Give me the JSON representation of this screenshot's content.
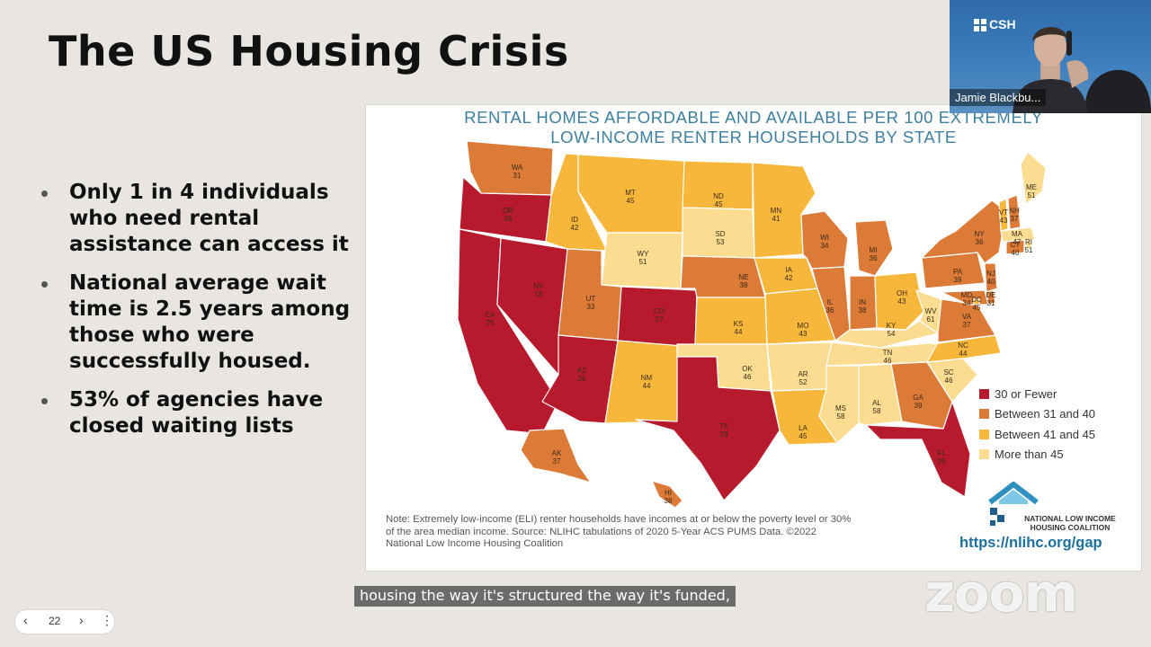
{
  "slide": {
    "title": "The US Housing Crisis",
    "bullets": [
      "Only 1 in 4 individuals who need rental assistance can access it",
      "National average wait time is 2.5 years among those who were successfully housed.",
      "53% of agencies have closed waiting lists"
    ]
  },
  "map": {
    "title_line1": "RENTAL HOMES AFFORDABLE AND AVAILABLE PER 100 EXTREMELY",
    "title_line2": "LOW-INCOME RENTER HOUSEHOLDS BY STATE",
    "colors": {
      "red": "#b61a2c",
      "orange": "#dc7a37",
      "yellow": "#f6b73a",
      "light": "#fbdc91"
    },
    "legend": [
      {
        "label": "30 or Fewer",
        "color": "#b61a2c"
      },
      {
        "label": "Between 31 and 40",
        "color": "#dc7a37"
      },
      {
        "label": "Between 41 and 45",
        "color": "#f6b73a"
      },
      {
        "label": "More than 45",
        "color": "#fbdc91"
      }
    ],
    "states": [
      {
        "abbr": "WA",
        "value": "31"
      },
      {
        "abbr": "OR",
        "value": "26"
      },
      {
        "abbr": "CA",
        "value": "25"
      },
      {
        "abbr": "NV",
        "value": "18"
      },
      {
        "abbr": "ID",
        "value": "42"
      },
      {
        "abbr": "MT",
        "value": "45"
      },
      {
        "abbr": "WY",
        "value": "51"
      },
      {
        "abbr": "UT",
        "value": "33"
      },
      {
        "abbr": "AZ",
        "value": "26"
      },
      {
        "abbr": "CO",
        "value": "27"
      },
      {
        "abbr": "NM",
        "value": "44"
      },
      {
        "abbr": "ND",
        "value": "45"
      },
      {
        "abbr": "SD",
        "value": "53"
      },
      {
        "abbr": "NE",
        "value": "38"
      },
      {
        "abbr": "KS",
        "value": "44"
      },
      {
        "abbr": "OK",
        "value": "46"
      },
      {
        "abbr": "TX",
        "value": "29"
      },
      {
        "abbr": "MN",
        "value": "41"
      },
      {
        "abbr": "IA",
        "value": "42"
      },
      {
        "abbr": "MO",
        "value": "43"
      },
      {
        "abbr": "AR",
        "value": "52"
      },
      {
        "abbr": "LA",
        "value": "45"
      },
      {
        "abbr": "WI",
        "value": "34"
      },
      {
        "abbr": "IL",
        "value": "36"
      },
      {
        "abbr": "MI",
        "value": "36"
      },
      {
        "abbr": "IN",
        "value": "38"
      },
      {
        "abbr": "OH",
        "value": "43"
      },
      {
        "abbr": "KY",
        "value": "54"
      },
      {
        "abbr": "TN",
        "value": "46"
      },
      {
        "abbr": "MS",
        "value": "58"
      },
      {
        "abbr": "AL",
        "value": "58"
      },
      {
        "abbr": "GA",
        "value": "39"
      },
      {
        "abbr": "FL",
        "value": "29"
      },
      {
        "abbr": "SC",
        "value": "46"
      },
      {
        "abbr": "NC",
        "value": "44"
      },
      {
        "abbr": "VA",
        "value": "37"
      },
      {
        "abbr": "WV",
        "value": "61"
      },
      {
        "abbr": "PA",
        "value": "39"
      },
      {
        "abbr": "NY",
        "value": "36"
      },
      {
        "abbr": "ME",
        "value": "51"
      },
      {
        "abbr": "VT",
        "value": "43"
      },
      {
        "abbr": "NH",
        "value": "37"
      },
      {
        "abbr": "MA",
        "value": "47"
      },
      {
        "abbr": "RI",
        "value": "51"
      },
      {
        "abbr": "CT",
        "value": "40"
      },
      {
        "abbr": "NJ",
        "value": "40"
      },
      {
        "abbr": "DE",
        "value": "31"
      },
      {
        "abbr": "MD",
        "value": "34"
      },
      {
        "abbr": "DC",
        "value": "45"
      },
      {
        "abbr": "AK",
        "value": "37"
      },
      {
        "abbr": "HI",
        "value": "38"
      }
    ],
    "note": "Note: Extremely low-income (ELI) renter households have incomes at or below the poverty level or 30% of the area median income. Source: NLIHC tabulations of 2020 5-Year ACS PUMS Data. ©2022 National Low Income Housing Coalition",
    "org_name": "NATIONAL LOW INCOME HOUSING COALITION",
    "url": "https://nlihc.org/gap"
  },
  "video": {
    "logo_text": "CSH",
    "participant_name": "Jamie Blackbu..."
  },
  "watermark": "zoom",
  "caption": "housing the way it's structured the way it's funded,",
  "pager": {
    "page": "22",
    "prev_icon": "chevron-left",
    "next_icon": "chevron-right",
    "more_icon": "more-vertical"
  }
}
